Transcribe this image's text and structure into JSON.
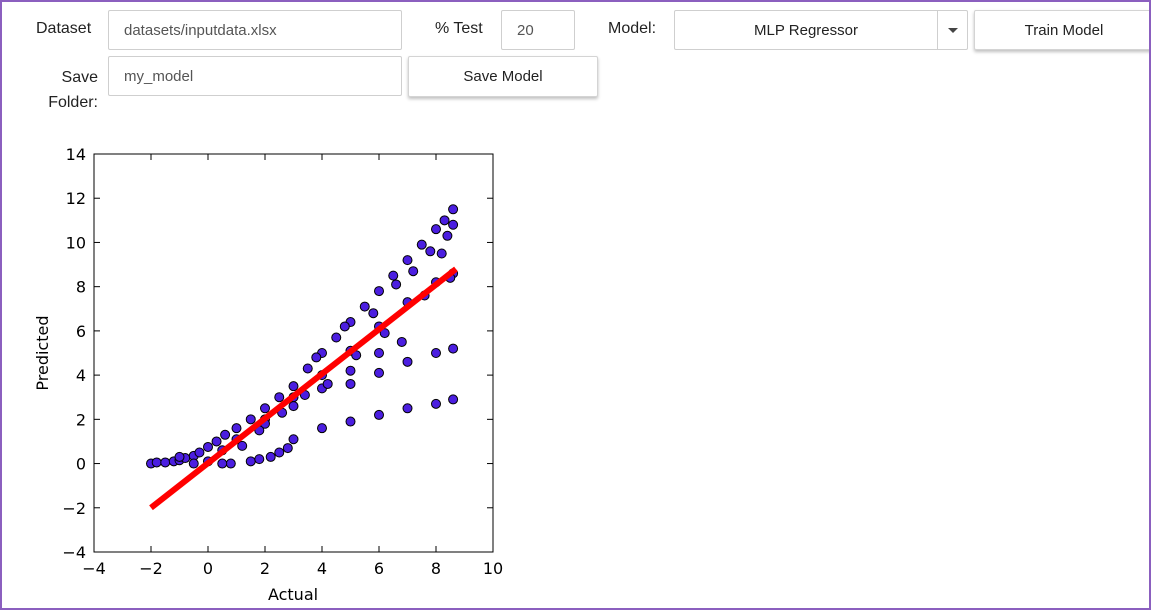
{
  "form": {
    "dataset_label": "Dataset",
    "dataset_value": "datasets/inputdata.xlsx",
    "test_label": "% Test",
    "test_value": "20",
    "model_label": "Model:",
    "model_selected": "MLP Regressor",
    "train_button": "Train Model",
    "save_label_line1": "Save",
    "save_label_line2": "Folder:",
    "save_value": "my_model",
    "save_button": "Save Model"
  },
  "colors": {
    "frame_border": "#8b5fbf",
    "point_fill": "#4b1ee0",
    "fit_line": "#ff0000"
  },
  "chart_data": {
    "type": "scatter",
    "title": "",
    "xlabel": "Actual",
    "ylabel": "Predicted",
    "xlim": [
      -4,
      10
    ],
    "ylim": [
      -4,
      14
    ],
    "xticks": [
      "−4",
      "−2",
      "0",
      "2",
      "4",
      "6",
      "8",
      "10"
    ],
    "yticks": [
      "−4",
      "−2",
      "0",
      "2",
      "4",
      "6",
      "8",
      "10",
      "12",
      "14"
    ],
    "grid": false,
    "fit_line": {
      "x": [
        -2.0,
        8.7
      ],
      "y": [
        -2.0,
        8.8
      ]
    },
    "series": [
      {
        "points": [
          [
            -2.0,
            0.0
          ],
          [
            -1.8,
            0.05
          ],
          [
            -1.5,
            0.05
          ],
          [
            -1.2,
            0.1
          ],
          [
            -1.0,
            0.15
          ],
          [
            -0.8,
            0.25
          ],
          [
            -0.5,
            0.35
          ],
          [
            -0.3,
            0.5
          ],
          [
            0.0,
            0.75
          ],
          [
            0.3,
            1.0
          ],
          [
            0.6,
            1.3
          ],
          [
            1.0,
            1.6
          ],
          [
            1.5,
            2.0
          ],
          [
            2.0,
            2.5
          ],
          [
            2.5,
            3.0
          ],
          [
            3.0,
            3.5
          ],
          [
            3.5,
            4.3
          ],
          [
            4.0,
            5.0
          ],
          [
            4.5,
            5.7
          ],
          [
            5.0,
            6.4
          ],
          [
            5.5,
            7.1
          ],
          [
            6.0,
            7.8
          ],
          [
            6.5,
            8.5
          ],
          [
            7.0,
            9.2
          ],
          [
            7.5,
            9.9
          ],
          [
            8.0,
            10.6
          ],
          [
            8.3,
            11.0
          ],
          [
            8.6,
            11.5
          ],
          [
            0.5,
            0.6
          ],
          [
            1.0,
            1.1
          ],
          [
            2.0,
            2.0
          ],
          [
            3.0,
            3.0
          ],
          [
            4.0,
            4.0
          ],
          [
            5.0,
            5.1
          ],
          [
            6.0,
            6.2
          ],
          [
            7.0,
            7.3
          ],
          [
            8.0,
            8.2
          ],
          [
            8.6,
            8.6
          ],
          [
            2.0,
            1.8
          ],
          [
            3.0,
            2.6
          ],
          [
            4.0,
            3.4
          ],
          [
            5.0,
            4.2
          ],
          [
            6.0,
            5.0
          ],
          [
            6.8,
            5.5
          ],
          [
            0.8,
            0.0
          ],
          [
            1.5,
            0.1
          ],
          [
            1.8,
            0.2
          ],
          [
            2.2,
            0.3
          ],
          [
            2.5,
            0.5
          ],
          [
            2.8,
            0.7
          ],
          [
            3.0,
            1.1
          ],
          [
            4.0,
            1.6
          ],
          [
            5.0,
            1.9
          ],
          [
            6.0,
            2.2
          ],
          [
            7.0,
            2.5
          ],
          [
            8.0,
            2.7
          ],
          [
            8.6,
            2.9
          ],
          [
            5.0,
            3.6
          ],
          [
            6.0,
            4.1
          ],
          [
            7.0,
            4.6
          ],
          [
            8.0,
            5.0
          ],
          [
            8.6,
            5.2
          ],
          [
            -1.0,
            0.3
          ],
          [
            -0.5,
            0.0
          ],
          [
            0.0,
            0.1
          ],
          [
            0.5,
            0.0
          ],
          [
            1.2,
            0.8
          ],
          [
            1.8,
            1.5
          ],
          [
            2.6,
            2.3
          ],
          [
            3.4,
            3.1
          ],
          [
            3.8,
            4.8
          ],
          [
            4.2,
            3.6
          ],
          [
            4.8,
            6.2
          ],
          [
            5.2,
            4.9
          ],
          [
            5.8,
            6.8
          ],
          [
            6.2,
            5.9
          ],
          [
            6.6,
            8.1
          ],
          [
            7.2,
            8.7
          ],
          [
            7.6,
            7.6
          ],
          [
            7.8,
            9.6
          ],
          [
            8.2,
            9.5
          ],
          [
            8.4,
            10.3
          ],
          [
            8.5,
            8.4
          ],
          [
            8.6,
            10.8
          ]
        ]
      }
    ]
  }
}
